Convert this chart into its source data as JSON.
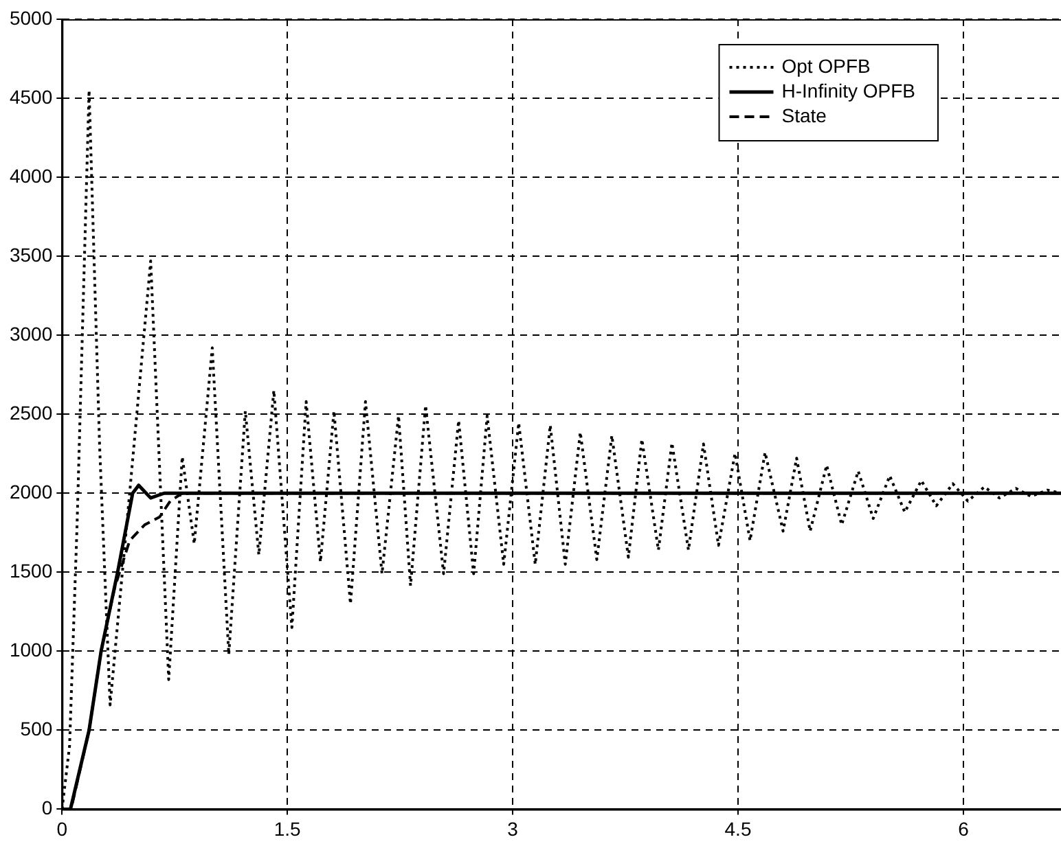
{
  "chart_data": {
    "type": "line",
    "xlim": [
      0,
      6.65
    ],
    "xticks": [
      0,
      1.5,
      3,
      4.5,
      6
    ],
    "ylim": [
      0,
      5000
    ],
    "yticks": [
      0,
      500,
      1000,
      1500,
      2000,
      2500,
      3000,
      3500,
      4000,
      4500,
      5000
    ],
    "grid": true,
    "legend": "top right",
    "marker": "none",
    "series": [
      {
        "name": "Opt OPFB",
        "color": "#000000",
        "line_style": "dotted",
        "x": [
          0,
          0.05,
          0.1,
          0.18,
          0.25,
          0.32,
          0.45,
          0.59,
          0.71,
          0.8,
          0.88,
          1.0,
          1.11,
          1.22,
          1.31,
          1.41,
          1.53,
          1.625,
          1.72,
          1.81,
          1.92,
          2.02,
          2.13,
          2.24,
          2.32,
          2.42,
          2.54,
          2.64,
          2.74,
          2.83,
          2.94,
          3.04,
          3.15,
          3.25,
          3.35,
          3.45,
          3.56,
          3.66,
          3.77,
          3.86,
          3.97,
          4.06,
          4.17,
          4.27,
          4.37,
          4.48,
          4.58,
          4.68,
          4.8,
          4.89,
          4.98,
          5.09,
          5.19,
          5.3,
          5.4,
          5.51,
          5.61,
          5.72,
          5.82,
          5.93,
          6.03,
          6.14,
          6.24,
          6.35,
          6.45,
          6.56,
          6.65
        ],
        "values": [
          0,
          400,
          1800,
          4550,
          2300,
          660,
          2000,
          3470,
          820,
          2230,
          1680,
          2920,
          980,
          2520,
          1610,
          2650,
          1150,
          2580,
          1565,
          2520,
          1300,
          2580,
          1490,
          2490,
          1415,
          2555,
          1490,
          2460,
          1490,
          2490,
          1550,
          2445,
          1550,
          2430,
          1550,
          2386,
          1580,
          2365,
          1595,
          2341,
          1640,
          2318,
          1640,
          2312,
          1670,
          2252,
          1700,
          2258,
          1760,
          2222,
          1760,
          2177,
          1800,
          2140,
          1840,
          2110,
          1880,
          2080,
          1920,
          2060,
          1950,
          2040,
          1970,
          2030,
          1980,
          2020,
          2000
        ]
      },
      {
        "name": "H-Infinity OPFB",
        "color": "#000000",
        "line_style": "solid",
        "x": [
          0,
          0.056,
          0.18,
          0.26,
          0.37,
          0.47,
          0.51,
          0.59,
          0.68,
          6.65
        ],
        "values": [
          0,
          0,
          500,
          1000,
          1500,
          2000,
          2050,
          1970,
          2000,
          2000
        ]
      },
      {
        "name": "State",
        "color": "#000000",
        "line_style": "dashed",
        "x": [
          0,
          0.06,
          0.18,
          0.26,
          0.35,
          0.45,
          0.55,
          0.65,
          0.72,
          0.8,
          6.65
        ],
        "values": [
          0,
          0,
          500,
          1000,
          1400,
          1700,
          1800,
          1850,
          1950,
          2000,
          2000
        ]
      }
    ]
  }
}
